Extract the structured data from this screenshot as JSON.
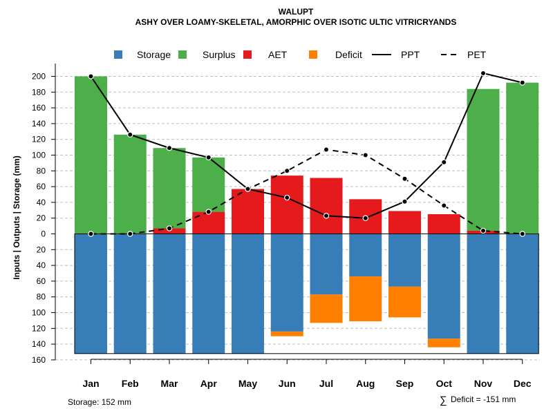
{
  "chart_data": {
    "type": "bar",
    "title": "WALUPT",
    "subtitle": "ASHY OVER LOAMY-SKELETAL, AMORPHIC OVER ISOTIC ULTIC VITRICRYANDS",
    "ylabel": "Inputs | Outputs | Storage     (mm)",
    "categories": [
      "Jan",
      "Feb",
      "Mar",
      "Apr",
      "May",
      "Jun",
      "Jul",
      "Aug",
      "Sep",
      "Oct",
      "Nov",
      "Dec"
    ],
    "ylim": [
      -160,
      210
    ],
    "y_ticks": [
      200,
      180,
      160,
      140,
      120,
      100,
      80,
      60,
      40,
      20,
      0,
      -20,
      -40,
      -60,
      -80,
      -100,
      -120,
      -140,
      -160
    ],
    "y_tick_labels": [
      "200",
      "180",
      "160",
      "140",
      "120",
      "100",
      "80",
      "60",
      "40",
      "20",
      "0",
      "20",
      "40",
      "60",
      "80",
      "100",
      "120",
      "140",
      "160"
    ],
    "legend": {
      "placement": "top",
      "entries": [
        {
          "label": "Storage",
          "kind": "square",
          "color": "#377EB8"
        },
        {
          "label": "Surplus",
          "kind": "square",
          "color": "#4DAF4A"
        },
        {
          "label": "AET",
          "kind": "square",
          "color": "#E41A1C"
        },
        {
          "label": "Deficit",
          "kind": "square",
          "color": "#FF7F00"
        },
        {
          "label": "PPT",
          "kind": "solid-line",
          "color": "#000000"
        },
        {
          "label": "PET",
          "kind": "dashed-line",
          "color": "#000000"
        }
      ]
    },
    "colors": {
      "storage": "#377EB8",
      "surplus": "#4DAF4A",
      "aet": "#E41A1C",
      "deficit": "#FF7F00",
      "line": "#000000",
      "grid": "#BEBEBE"
    },
    "series": [
      {
        "name": "AET",
        "values": [
          0,
          0,
          7,
          28,
          57,
          74,
          71,
          44,
          29,
          25,
          4,
          0
        ]
      },
      {
        "name": "Surplus",
        "values": [
          200,
          126,
          102,
          69,
          0,
          0,
          0,
          0,
          0,
          0,
          180,
          192
        ]
      },
      {
        "name": "Storage",
        "values": [
          152,
          152,
          152,
          152,
          152,
          124,
          77,
          54,
          67,
          133,
          152,
          152
        ]
      },
      {
        "name": "Deficit",
        "values": [
          0,
          0,
          0,
          0,
          0,
          6,
          36,
          57,
          39,
          11,
          0,
          0
        ]
      },
      {
        "name": "PPT",
        "values": [
          200,
          126,
          109,
          97,
          57,
          46,
          23,
          20,
          41,
          91,
          204,
          192
        ]
      },
      {
        "name": "PET",
        "values": [
          0,
          0,
          7,
          28,
          57,
          80,
          107,
          100,
          70,
          36,
          4,
          0
        ]
      }
    ],
    "storage_capacity": 152
  },
  "footer": {
    "storage_text": "Storage: 152 mm",
    "deficit_symbol": "∑",
    "deficit_text": "Deficit = -151 mm"
  }
}
